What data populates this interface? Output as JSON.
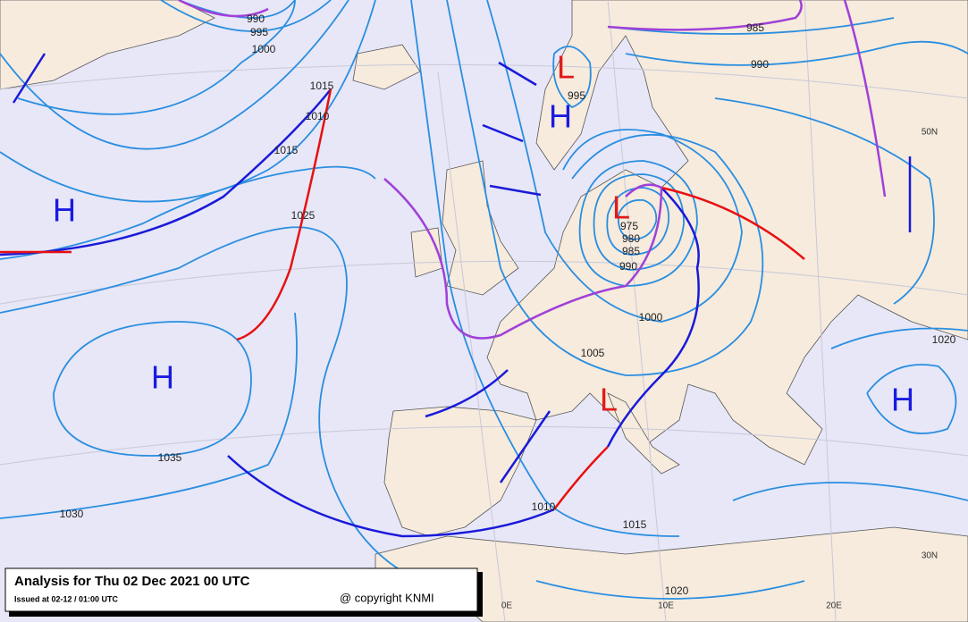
{
  "caption": {
    "title": "Analysis for Thu 02 Dec 2021 00 UTC",
    "issued": "Issued at 02-12 / 01:00 UTC",
    "copyright": "@ copyright KNMI"
  },
  "centers": [
    "H",
    "H",
    "H",
    "L",
    "L",
    "L",
    "H"
  ],
  "isobar_labels": [
    "990",
    "995",
    "1000",
    "1015",
    "1010",
    "1015",
    "1025",
    "1035",
    "1030",
    "1010",
    "1015",
    "1020",
    "1005",
    "1000",
    "990",
    "985",
    "980",
    "975",
    "995",
    "985",
    "990",
    "1020"
  ],
  "grid_labels": [
    "50N",
    "30N",
    "0E",
    "10E",
    "20E"
  ]
}
